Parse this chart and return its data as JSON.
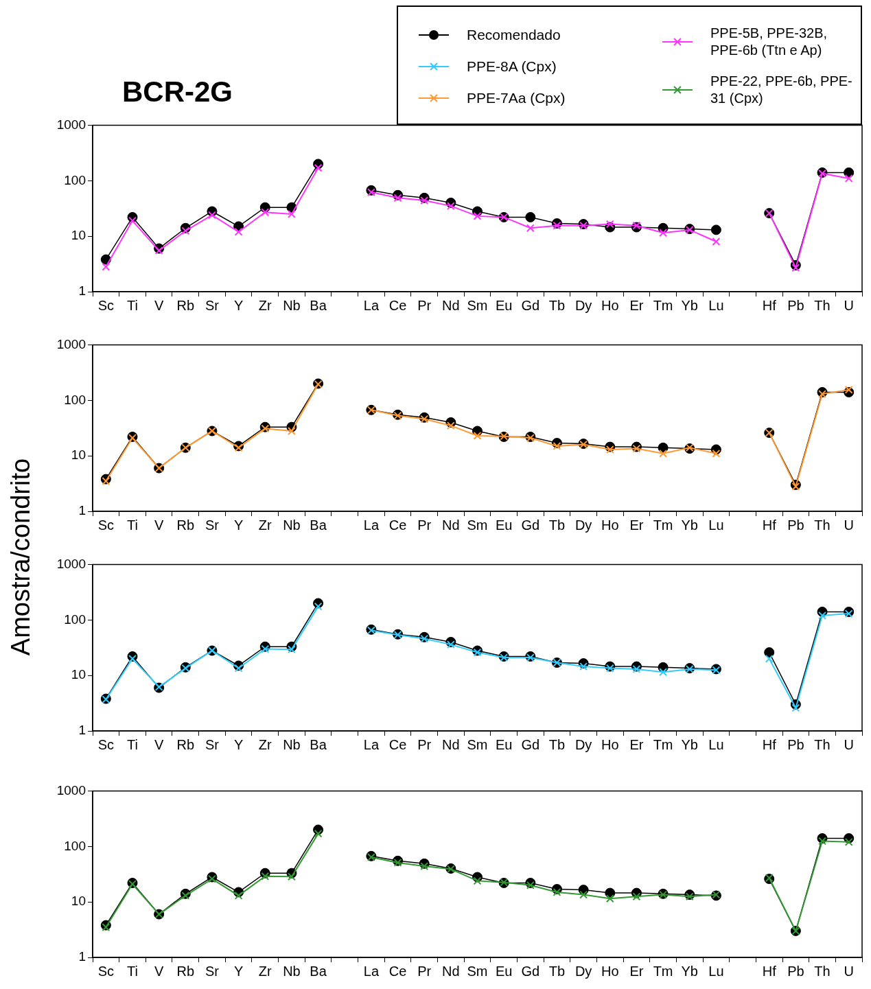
{
  "chart_data": [
    {
      "type": "line",
      "title": "BCR-2G",
      "legend": "top right",
      "log": "y",
      "grid": false,
      "categories": [
        "Sc",
        "Ti",
        "V",
        "Rb",
        "Sr",
        "Y",
        "Zr",
        "Nb",
        "Ba",
        null,
        "La",
        "Ce",
        "Pr",
        "Nd",
        "Sm",
        "Eu",
        "Gd",
        "Tb",
        "Dy",
        "Ho",
        "Er",
        "Tm",
        "Yb",
        "Lu",
        null,
        "Hf",
        "Pb",
        "Th",
        "U"
      ],
      "ylim": [
        1,
        1000
      ],
      "yticks": [
        1,
        10,
        100,
        1000
      ],
      "series": [
        {
          "name": "Recomendado",
          "color": "#000000",
          "marker": "circle",
          "values": [
            3.8,
            22,
            6,
            14,
            28,
            15,
            33,
            33,
            200,
            null,
            67,
            55,
            49,
            40,
            28,
            22,
            22,
            17,
            16.5,
            14.5,
            14.5,
            14,
            13.5,
            13,
            null,
            26,
            3,
            140,
            140
          ]
        },
        {
          "name": "PPE-5B, PPE-32B, PPE-6b (Ttn e Ap)",
          "color": "#ff33ff",
          "marker": "cross",
          "values": [
            2.8,
            19,
            5.5,
            12.5,
            24,
            12,
            27,
            25,
            170,
            null,
            62,
            49,
            44,
            35,
            23,
            22,
            14,
            15.5,
            15.5,
            16.5,
            15.5,
            11.5,
            13,
            8,
            null,
            26,
            2.7,
            135,
            110
          ]
        }
      ]
    },
    {
      "type": "line",
      "legend": "top right",
      "log": "y",
      "grid": false,
      "categories": [
        "Sc",
        "Ti",
        "V",
        "Rb",
        "Sr",
        "Y",
        "Zr",
        "Nb",
        "Ba",
        null,
        "La",
        "Ce",
        "Pr",
        "Nd",
        "Sm",
        "Eu",
        "Gd",
        "Tb",
        "Dy",
        "Ho",
        "Er",
        "Tm",
        "Yb",
        "Lu",
        null,
        "Hf",
        "Pb",
        "Th",
        "U"
      ],
      "ylim": [
        1,
        1000
      ],
      "yticks": [
        1,
        10,
        100,
        1000
      ],
      "series": [
        {
          "color": "#000000",
          "marker": "circle",
          "values": [
            3.8,
            22,
            6,
            14,
            28,
            15,
            33,
            33,
            200,
            null,
            67,
            55,
            49,
            40,
            28,
            22,
            22,
            17,
            16.5,
            14.5,
            14.5,
            14,
            13.5,
            13,
            null,
            26,
            3,
            140,
            140
          ]
        },
        {
          "name": "PPE-7Aa (Cpx)",
          "color": "#ff9933",
          "marker": "cross",
          "values": [
            3.5,
            21,
            6,
            14,
            28,
            14,
            31,
            28,
            195,
            null,
            67,
            53,
            46,
            35,
            23,
            22.5,
            21,
            15,
            16,
            13,
            13.5,
            11,
            14,
            11,
            null,
            26,
            2.8,
            130,
            155
          ]
        }
      ]
    },
    {
      "type": "line",
      "ylabel": "Amostra/condrito",
      "legend": "top right",
      "log": "y",
      "grid": false,
      "categories": [
        "Sc",
        "Ti",
        "V",
        "Rb",
        "Sr",
        "Y",
        "Zr",
        "Nb",
        "Ba",
        null,
        "La",
        "Ce",
        "Pr",
        "Nd",
        "Sm",
        "Eu",
        "Gd",
        "Tb",
        "Dy",
        "Ho",
        "Er",
        "Tm",
        "Yb",
        "Lu",
        null,
        "Hf",
        "Pb",
        "Th",
        "U"
      ],
      "ylim": [
        1,
        1000
      ],
      "yticks": [
        1,
        10,
        100,
        1000
      ],
      "series": [
        {
          "color": "#000000",
          "marker": "circle",
          "values": [
            3.8,
            22,
            6,
            14,
            28,
            15,
            33,
            33,
            200,
            null,
            67,
            55,
            49,
            40,
            28,
            22,
            22,
            17,
            16.5,
            14.5,
            14.5,
            14,
            13.5,
            13,
            null,
            26,
            3,
            140,
            140
          ]
        },
        {
          "name": "PPE-8A (Cpx)",
          "color": "#33ccff",
          "marker": "cross",
          "values": [
            3.7,
            20,
            6.2,
            13.5,
            28,
            13.5,
            30,
            29.5,
            175,
            null,
            65,
            54,
            46,
            36,
            26,
            21,
            21,
            17,
            14.5,
            13.5,
            13,
            11.5,
            13,
            12.5,
            null,
            20,
            2.6,
            120,
            130
          ]
        }
      ]
    },
    {
      "type": "line",
      "legend": "top right",
      "log": "y",
      "grid": false,
      "categories": [
        "Sc",
        "Ti",
        "V",
        "Rb",
        "Sr",
        "Y",
        "Zr",
        "Nb",
        "Ba",
        null,
        "La",
        "Ce",
        "Pr",
        "Nd",
        "Sm",
        "Eu",
        "Gd",
        "Tb",
        "Dy",
        "Ho",
        "Er",
        "Tm",
        "Yb",
        "Lu",
        null,
        "Hf",
        "Pb",
        "Th",
        "U"
      ],
      "ylim": [
        1,
        1000
      ],
      "yticks": [
        1,
        10,
        100,
        1000
      ],
      "series": [
        {
          "color": "#000000",
          "marker": "circle",
          "values": [
            3.8,
            22,
            6,
            14,
            28,
            15,
            33,
            33,
            200,
            null,
            67,
            55,
            49,
            40,
            28,
            22,
            22,
            17,
            16.5,
            14.5,
            14.5,
            14,
            13.5,
            13,
            null,
            26,
            3,
            140,
            140
          ]
        },
        {
          "name": "PPE-22, PPE-6b, PPE-31 (Cpx)",
          "color": "#339933",
          "marker": "cross",
          "values": [
            3.5,
            21,
            6,
            13,
            26,
            13,
            29,
            28.5,
            170,
            null,
            64,
            51,
            44,
            39,
            24,
            22.5,
            20,
            15,
            13.5,
            11.5,
            12.5,
            13.5,
            12.5,
            13.5,
            null,
            27,
            3,
            125,
            120
          ]
        }
      ]
    }
  ]
}
